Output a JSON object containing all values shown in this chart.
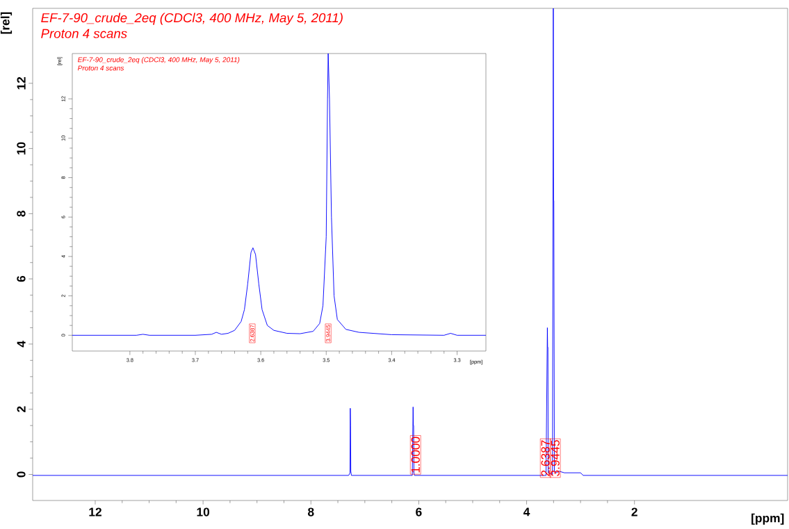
{
  "chart_data": [
    {
      "type": "line",
      "title": "EF-7-90_crude_2eq (CDCl3, 400 MHz, May 5, 2011)",
      "subtitle": "Proton 4 scans",
      "xlabel": "[ppm]",
      "ylabel": "[rel]",
      "xlim": [
        13.16,
        -0.84
      ],
      "ylim": [
        -0.8,
        14.3
      ],
      "xticks": [
        12,
        10,
        8,
        6,
        4,
        2
      ],
      "yticks": [
        0,
        2,
        4,
        6,
        8,
        10,
        12
      ],
      "series": [
        {
          "color": "#0000ff",
          "x": [
            13.16,
            7.3,
            7.275,
            7.27,
            7.265,
            7.26,
            7.25,
            6.12,
            6.105,
            6.1,
            6.095,
            6.09,
            6.08,
            3.64,
            3.615,
            3.61,
            3.605,
            3.6,
            3.52,
            3.505,
            3.5,
            3.495,
            3.485,
            3.45,
            3.4,
            3.3,
            3.0,
            2.95,
            -0.84
          ],
          "values": [
            -0.03,
            -0.03,
            0.05,
            2.03,
            1.5,
            0.1,
            -0.03,
            -0.03,
            2.07,
            1.5,
            1.5,
            0.05,
            -0.03,
            -0.03,
            4.5,
            3.9,
            3.9,
            0.05,
            0.0,
            14.3,
            8.4,
            8.4,
            0.1,
            0.05,
            0.1,
            0.05,
            0.05,
            -0.03,
            -0.03
          ]
        }
      ],
      "annotations": [
        {
          "text": "1.0000",
          "x": 6.06,
          "y": 0.6
        },
        {
          "text": "2.6387",
          "x": 3.65,
          "y": 0.5
        },
        {
          "text": "3.9445",
          "x": 3.47,
          "y": 0.5
        }
      ]
    },
    {
      "type": "line",
      "title": "EF-7-90_crude_2eq (CDCl3, 400 MHz, May 5, 2011)",
      "subtitle": "Proton 4 scans",
      "xlabel": "[ppm]",
      "ylabel": "[rel]",
      "xlim": [
        3.888,
        3.256
      ],
      "ylim": [
        -0.8,
        14.3
      ],
      "xticks": [
        3.8,
        3.7,
        3.6,
        3.5,
        3.4,
        3.3
      ],
      "yticks": [
        0,
        2,
        4,
        6,
        8,
        10,
        12
      ],
      "series": [
        {
          "color": "#0000ff",
          "x": [
            3.888,
            3.79,
            3.78,
            3.77,
            3.7,
            3.675,
            3.668,
            3.66,
            3.65,
            3.64,
            3.63,
            3.625,
            3.62,
            3.615,
            3.612,
            3.608,
            3.603,
            3.598,
            3.59,
            3.58,
            3.56,
            3.54,
            3.52,
            3.51,
            3.505,
            3.5,
            3.498,
            3.497,
            3.495,
            3.492,
            3.488,
            3.483,
            3.47,
            3.45,
            3.4,
            3.32,
            3.31,
            3.3,
            3.256
          ],
          "values": [
            0.0,
            0.0,
            0.05,
            0.0,
            0.0,
            0.05,
            0.15,
            0.05,
            0.1,
            0.25,
            0.7,
            1.3,
            2.6,
            4.2,
            4.44,
            4.1,
            2.6,
            1.3,
            0.5,
            0.25,
            0.1,
            0.08,
            0.2,
            0.6,
            1.5,
            5.0,
            12.0,
            14.3,
            12.0,
            6.0,
            2.0,
            0.8,
            0.3,
            0.15,
            0.03,
            0.0,
            0.1,
            0.0,
            0.0
          ]
        }
      ],
      "annotations": [
        {
          "text": "2.6387",
          "x": 3.613,
          "y": 0.1
        },
        {
          "text": "3.9445",
          "x": 3.497,
          "y": 0.1
        }
      ]
    }
  ]
}
